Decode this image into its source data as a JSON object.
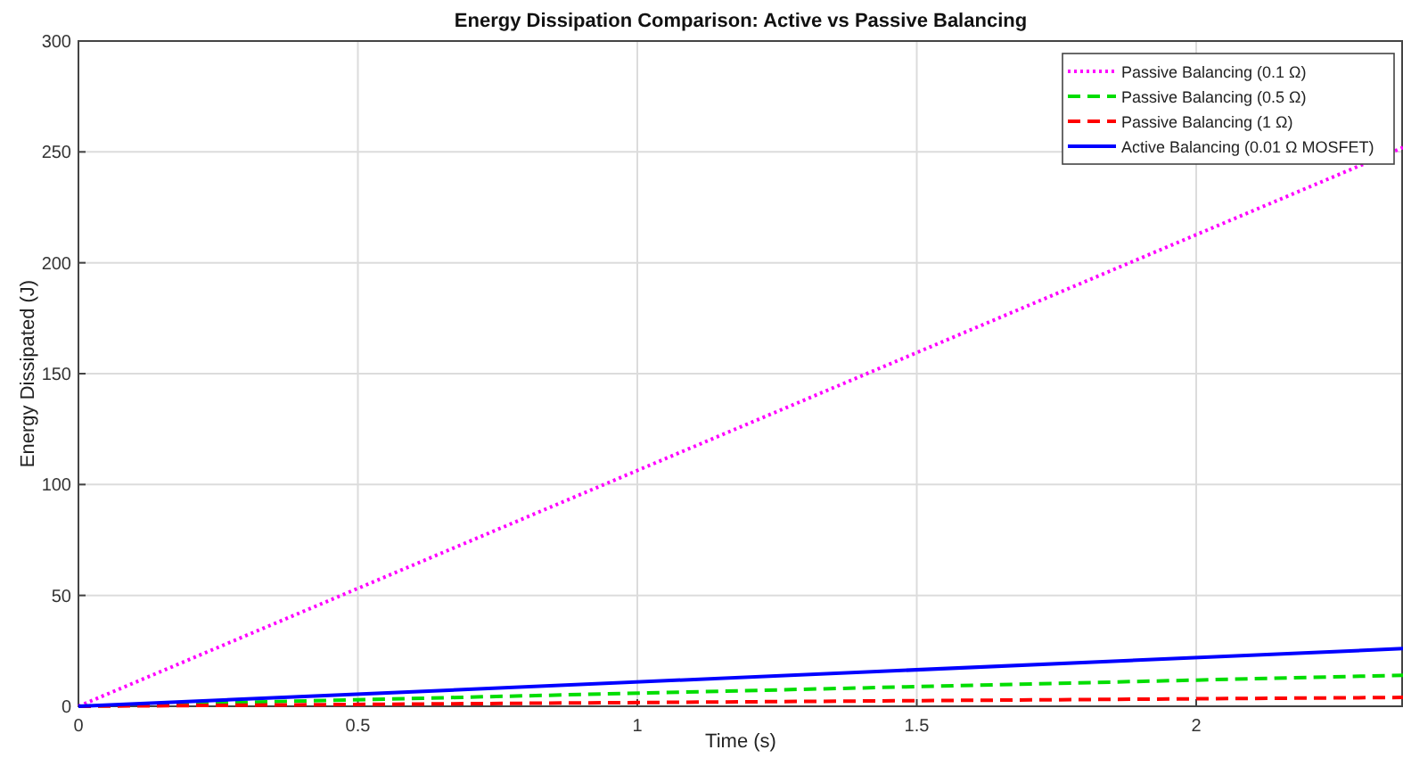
{
  "chart_data": {
    "type": "line",
    "title": "Energy Dissipation Comparison: Active vs Passive Balancing",
    "xlabel": "Time (s)",
    "ylabel": "Energy Dissipated (J)",
    "x": [
      0,
      2.37
    ],
    "series": [
      {
        "name": "Passive Balancing (0.1 Ω)",
        "color": "#ff00ff",
        "values": [
          0,
          252
        ],
        "line_style": "dotted"
      },
      {
        "name": "Passive Balancing (0.5 Ω)",
        "color": "#00dd00",
        "values": [
          0,
          14
        ],
        "line_style": "dashed"
      },
      {
        "name": "Passive Balancing (1 Ω)",
        "color": "#ff0000",
        "values": [
          0,
          4
        ],
        "line_style": "dashed"
      },
      {
        "name": "Active Balancing (0.01 Ω MOSFET)",
        "color": "#0000ff",
        "values": [
          0,
          26
        ],
        "line_style": "solid"
      }
    ],
    "xlim": [
      0,
      2.37
    ],
    "xticks": [
      0,
      0.5,
      1,
      1.5,
      2
    ],
    "ylim": [
      0,
      300
    ],
    "yticks": [
      0,
      50,
      100,
      150,
      200,
      250,
      300
    ],
    "grid": true,
    "legend": "top right",
    "marker": "none"
  }
}
